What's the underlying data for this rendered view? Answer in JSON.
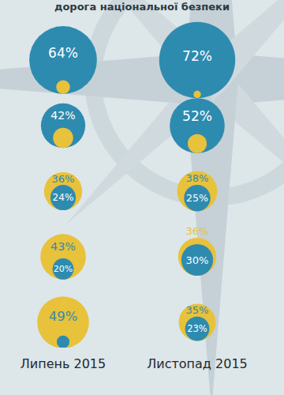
{
  "chart_data": {
    "type": "bubble",
    "title": "дорога національної безпеки",
    "categories": [
      "Липень 2015",
      "Листопад 2015"
    ],
    "data_labels": true,
    "series": [
      {
        "color": "#2e8bb0",
        "values": [
          [
            64,
            42,
            24,
            20,
            12
          ],
          [
            72,
            52,
            25,
            30,
            23
          ]
        ],
        "value_labels": [
          [
            "64%",
            "42%",
            "24%",
            "20%",
            null
          ],
          [
            "72%",
            "52%",
            "25%",
            "30%",
            "23%"
          ]
        ]
      },
      {
        "color": "#e8c23a",
        "values": [
          [
            13,
            19,
            36,
            43,
            49
          ],
          [
            7,
            18,
            38,
            36,
            35
          ]
        ],
        "value_labels": [
          [
            null,
            null,
            "36%",
            "43%",
            "49%"
          ],
          [
            null,
            null,
            "38%",
            "36%",
            "35%"
          ]
        ]
      }
    ]
  }
}
